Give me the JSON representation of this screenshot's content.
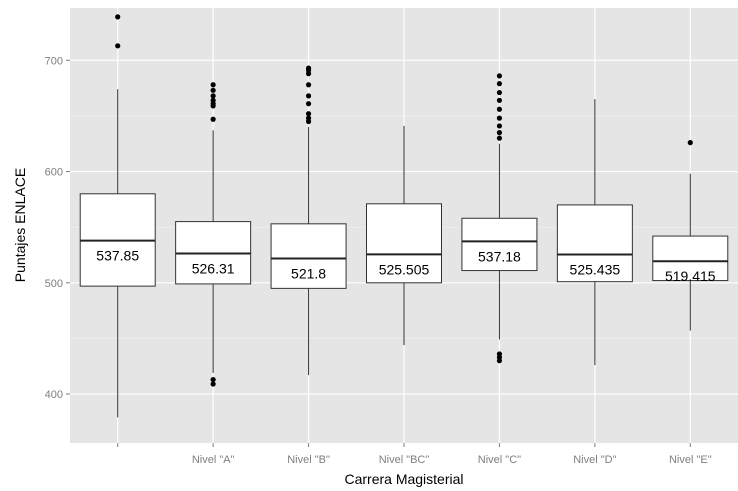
{
  "chart_data": {
    "type": "boxplot",
    "xlabel": "Carrera Magisterial",
    "ylabel": "Puntajes ENLACE",
    "ylim": [
      356,
      747
    ],
    "y_ticks": [
      400,
      500,
      600,
      700
    ],
    "y_tick_labels": [
      "400",
      "500",
      "600",
      "700"
    ],
    "grid": true,
    "categories": [
      "",
      "Nivel \"A\"",
      "Nivel \"B\"",
      "Nivel \"BC\"",
      "Nivel \"C\"",
      "Nivel \"D\"",
      "Nivel \"E\""
    ],
    "boxes": [
      {
        "category": "",
        "whisker_low": 379,
        "q1": 497,
        "median": 537.85,
        "q3": 580,
        "whisker_high": 674,
        "outliers": [
          713,
          739
        ],
        "label": "537.85"
      },
      {
        "category": "Nivel \"A\"",
        "whisker_low": 419,
        "q1": 499,
        "median": 526.31,
        "q3": 555,
        "whisker_high": 637,
        "outliers": [
          409,
          413,
          647,
          659,
          661,
          664,
          668,
          673,
          678
        ],
        "label": "526.31"
      },
      {
        "category": "Nivel \"B\"",
        "whisker_low": 417,
        "q1": 495,
        "median": 521.8,
        "q3": 553,
        "whisker_high": 640,
        "outliers": [
          645,
          648,
          652,
          661,
          668,
          678,
          688,
          691,
          693
        ],
        "label": "521.8"
      },
      {
        "category": "Nivel \"BC\"",
        "whisker_low": 444,
        "q1": 500,
        "median": 525.505,
        "q3": 571,
        "whisker_high": 641,
        "outliers": [],
        "label": "525.505"
      },
      {
        "category": "Nivel \"C\"",
        "whisker_low": 449,
        "q1": 511,
        "median": 537.18,
        "q3": 558,
        "whisker_high": 625,
        "outliers": [
          430,
          433,
          436,
          630,
          635,
          641,
          648,
          656,
          664,
          671,
          679,
          686
        ],
        "label": "537.18"
      },
      {
        "category": "Nivel \"D\"",
        "whisker_low": 426,
        "q1": 501,
        "median": 525.435,
        "q3": 570,
        "whisker_high": 665,
        "outliers": [],
        "label": "525.435"
      },
      {
        "category": "Nivel \"E\"",
        "whisker_low": 457,
        "q1": 502,
        "median": 519.415,
        "q3": 542,
        "whisker_high": 598,
        "outliers": [
          626
        ],
        "label": "519.415"
      }
    ]
  },
  "colors": {
    "panel_background": "#e5e5e5",
    "grid_major": "#ffffff",
    "grid_minor": "#f2f2f2",
    "box_fill": "#ffffff",
    "box_stroke": "#333333",
    "median_line": "#222222",
    "outlier": "#000000",
    "tick_text": "#7f7f7f",
    "axis_title": "#000000"
  }
}
